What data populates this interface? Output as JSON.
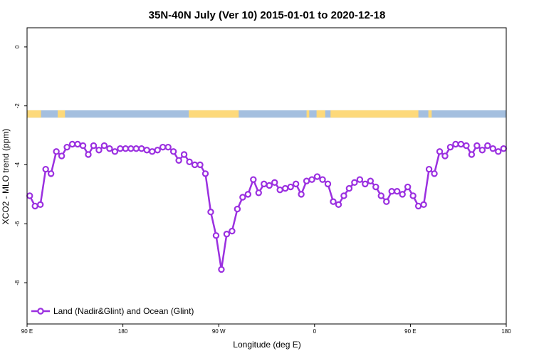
{
  "chart_data": {
    "type": "line",
    "title": "35N-40N July (Ver 10)   2015-01-01 to 2020-12-18",
    "xlabel": "Longitude (deg E)",
    "ylabel": "XCO2 - MLO trend (ppm)",
    "xlim": [
      90,
      450
    ],
    "ylim": [
      -9.4,
      0.65
    ],
    "x_ticks": [
      {
        "value": 90,
        "label": "90 E"
      },
      {
        "value": 162,
        "label": "180"
      },
      {
        "value": 234,
        "label": "90 W"
      },
      {
        "value": 306,
        "label": "0"
      },
      {
        "value": 378,
        "label": "90 E"
      },
      {
        "value": 450,
        "label": "180"
      }
    ],
    "y_ticks": [
      {
        "value": 0,
        "label": "0"
      },
      {
        "value": -2,
        "label": "-2"
      },
      {
        "value": -4,
        "label": "-4"
      },
      {
        "value": -6,
        "label": "-6"
      },
      {
        "value": -8,
        "label": "-8"
      }
    ],
    "land_ocean_strip": {
      "y_range": [
        -2.15,
        -2.4
      ],
      "ocean_color": "#a4bfdf",
      "land_color": "#fdd97a",
      "land_segments": [
        [
          90,
          100.5
        ],
        [
          113,
          118.5
        ],
        [
          211.5,
          249
        ],
        [
          300,
          302
        ],
        [
          307.5,
          314
        ],
        [
          318,
          384
        ],
        [
          391.5,
          394
        ]
      ]
    },
    "series": [
      {
        "name": "Land (Nadir&Glint) and Ocean (Glint)",
        "color": "#9b30e0",
        "x": [
          92,
          96,
          100,
          104,
          108,
          112,
          116,
          120,
          124,
          128,
          132,
          136,
          140,
          144,
          148,
          152,
          156,
          160,
          164,
          168,
          172,
          176,
          180,
          184,
          188,
          192,
          196,
          200,
          204,
          208,
          212,
          216,
          220,
          224,
          228,
          232,
          236,
          240,
          244,
          248,
          252,
          256,
          260,
          264,
          268,
          272,
          276,
          280,
          284,
          288,
          292,
          296,
          300,
          304,
          308,
          312,
          316,
          320,
          324,
          328,
          332,
          336,
          340,
          344,
          348,
          352,
          356,
          360,
          364,
          368,
          372,
          376,
          380,
          384,
          388,
          392,
          396,
          400,
          404,
          408,
          412,
          416,
          420,
          424,
          428,
          432,
          436,
          440,
          444,
          448
        ],
        "y": [
          -5.05,
          -5.4,
          -5.35,
          -4.15,
          -4.3,
          -3.55,
          -3.7,
          -3.4,
          -3.3,
          -3.3,
          -3.35,
          -3.65,
          -3.35,
          -3.5,
          -3.35,
          -3.45,
          -3.55,
          -3.45,
          -3.45,
          -3.45,
          -3.45,
          -3.45,
          -3.5,
          -3.55,
          -3.5,
          -3.4,
          -3.4,
          -3.55,
          -3.85,
          -3.65,
          -3.9,
          -4.0,
          -4.0,
          -4.3,
          -5.6,
          -6.4,
          -7.55,
          -6.35,
          -6.25,
          -5.5,
          -5.1,
          -5.0,
          -4.5,
          -4.95,
          -4.65,
          -4.7,
          -4.6,
          -4.85,
          -4.8,
          -4.75,
          -4.65,
          -5.0,
          -4.55,
          -4.5,
          -4.4,
          -4.5,
          -4.65,
          -5.25,
          -5.35,
          -5.05,
          -4.8,
          -4.6,
          -4.5,
          -4.65,
          -4.55,
          -4.75,
          -5.05,
          -5.25,
          -4.9,
          -4.9,
          -5.0,
          -4.75,
          -5.05,
          -5.4,
          -5.35,
          -4.15,
          -4.3,
          -3.55,
          -3.7,
          -3.4,
          -3.3,
          -3.3,
          -3.35,
          -3.65,
          -3.35,
          -3.5,
          -3.35,
          -3.45,
          -3.55,
          -3.45
        ]
      }
    ],
    "legend": {
      "position": "bottom-left",
      "entries": [
        "Land (Nadir&Glint) and Ocean (Glint)"
      ]
    },
    "grid": false
  }
}
